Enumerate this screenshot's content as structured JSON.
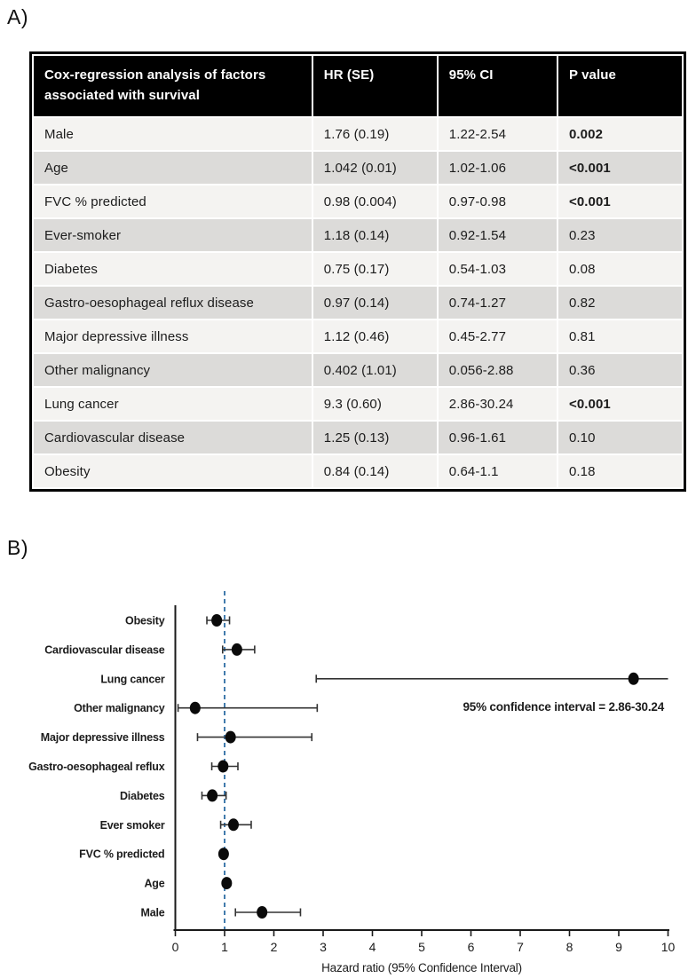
{
  "panel_a_label": "A)",
  "panel_b_label": "B)",
  "table": {
    "header": [
      "Cox-regression analysis of factors associated with survival",
      "HR (SE)",
      "95% CI",
      "P value"
    ],
    "rows": [
      {
        "label": "Male",
        "hr_se": "1.76 (0.19)",
        "ci": "1.22-2.54",
        "p": "0.002",
        "p_bold": true
      },
      {
        "label": "Age",
        "hr_se": "1.042 (0.01)",
        "ci": "1.02-1.06",
        "p": "<0.001",
        "p_bold": true
      },
      {
        "label": "FVC % predicted",
        "hr_se": "0.98 (0.004)",
        "ci": "0.97-0.98",
        "p": "<0.001",
        "p_bold": true
      },
      {
        "label": "Ever-smoker",
        "hr_se": "1.18 (0.14)",
        "ci": "0.92-1.54",
        "p": "0.23",
        "p_bold": false
      },
      {
        "label": "Diabetes",
        "hr_se": "0.75 (0.17)",
        "ci": "0.54-1.03",
        "p": "0.08",
        "p_bold": false
      },
      {
        "label": "Gastro-oesophageal reflux disease",
        "hr_se": "0.97 (0.14)",
        "ci": "0.74-1.27",
        "p": "0.82",
        "p_bold": false
      },
      {
        "label": "Major depressive illness",
        "hr_se": "1.12 (0.46)",
        "ci": "0.45-2.77",
        "p": "0.81",
        "p_bold": false
      },
      {
        "label": "Other malignancy",
        "hr_se": "0.402 (1.01)",
        "ci": "0.056-2.88",
        "p": "0.36",
        "p_bold": false
      },
      {
        "label": "Lung cancer",
        "hr_se": "9.3 (0.60)",
        "ci": "2.86-30.24",
        "p": "<0.001",
        "p_bold": true
      },
      {
        "label": "Cardiovascular disease",
        "hr_se": "1.25 (0.13)",
        "ci": "0.96-1.61",
        "p": "0.10",
        "p_bold": false
      },
      {
        "label": "Obesity",
        "hr_se": "0.84 (0.14)",
        "ci": "0.64-1.1",
        "p": "0.18",
        "p_bold": false
      }
    ]
  },
  "chart_data": {
    "type": "scatter",
    "subtype": "forest-plot",
    "xlabel": "Hazard ratio (95% Confidence Interval)",
    "xlim": [
      0,
      10
    ],
    "xticks": [
      "0",
      "1",
      "2",
      "3",
      "4",
      "5",
      "6",
      "7",
      "8",
      "9",
      "10"
    ],
    "reference_line_x": 1,
    "annotation": "95% confidence interval = 2.86-30.24",
    "colors": {
      "marker": "#0a0a0a",
      "error_bar": "#333333",
      "axis": "#1a1a1a",
      "reference_line": "#2e6da4"
    },
    "points": [
      {
        "label": "Obesity",
        "hr": 0.84,
        "lo": 0.64,
        "hi": 1.1
      },
      {
        "label": "Cardiovascular disease",
        "hr": 1.25,
        "lo": 0.96,
        "hi": 1.61
      },
      {
        "label": "Lung cancer",
        "hr": 9.3,
        "lo": 2.86,
        "hi": 30.24
      },
      {
        "label": "Other malignancy",
        "hr": 0.402,
        "lo": 0.056,
        "hi": 2.88
      },
      {
        "label": "Major depressive illness",
        "hr": 1.12,
        "lo": 0.45,
        "hi": 2.77
      },
      {
        "label": "Gastro-oesophageal reflux",
        "hr": 0.97,
        "lo": 0.74,
        "hi": 1.27
      },
      {
        "label": "Diabetes",
        "hr": 0.75,
        "lo": 0.54,
        "hi": 1.03
      },
      {
        "label": "Ever smoker",
        "hr": 1.18,
        "lo": 0.92,
        "hi": 1.54
      },
      {
        "label": "FVC % predicted",
        "hr": 0.98,
        "lo": 0.97,
        "hi": 0.98
      },
      {
        "label": "Age",
        "hr": 1.042,
        "lo": 1.02,
        "hi": 1.06
      },
      {
        "label": "Male",
        "hr": 1.76,
        "lo": 1.22,
        "hi": 2.54
      }
    ]
  }
}
